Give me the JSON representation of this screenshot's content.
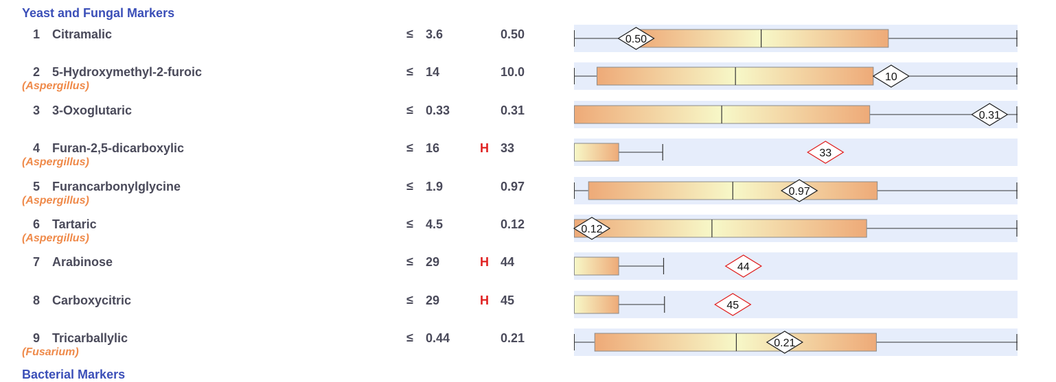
{
  "section": {
    "title": "Yeast and Fungal Markers",
    "next_title": "Bacterial Markers"
  },
  "colors": {
    "band_bg": "#e6edfb",
    "box_edge": "#eeaa78",
    "box_center": "#f7f8c8",
    "flag_high": "#e02020",
    "organism": "#ef8a4a",
    "title": "#3b4fb8"
  },
  "markers": [
    {
      "num": "1",
      "name": "Citramalic",
      "organism": "",
      "ref_sym": "≤",
      "ref_value": "3.6",
      "flag": "",
      "value": "0.50",
      "marker_label": "0.50",
      "plot": {
        "whisker_low": 0,
        "box_low": 0.14,
        "median": 0.422,
        "box_high": 0.708,
        "whisker_high": 1.0,
        "point": 0.14
      }
    },
    {
      "num": "2",
      "name": "5-Hydroxymethyl-2-furoic",
      "organism": "(Aspergillus)",
      "ref_sym": "≤",
      "ref_value": "14",
      "flag": "",
      "value": "10.0",
      "marker_label": "10",
      "plot": {
        "whisker_low": 0,
        "box_low": 0.051,
        "median": 0.364,
        "box_high": 0.674,
        "whisker_high": 1.0,
        "point": 0.715
      }
    },
    {
      "num": "3",
      "name": "3-Oxoglutaric",
      "organism": "",
      "ref_sym": "≤",
      "ref_value": "0.33",
      "flag": "",
      "value": "0.31",
      "marker_label": "0.31",
      "plot": {
        "whisker_low": 0,
        "box_low": 0,
        "median": 0.333,
        "box_high": 0.666,
        "whisker_high": 1.0,
        "point": 0.937
      }
    },
    {
      "num": "4",
      "name": "Furan-2,5-dicarboxylic",
      "organism": "(Aspergillus)",
      "ref_sym": "≤",
      "ref_value": "16",
      "flag": "H",
      "value": "33",
      "marker_label": "33",
      "plot": {
        "whisker_low": 0,
        "box_low": 0,
        "median": null,
        "box_high": 0.1,
        "whisker_high": 0.2,
        "point": 0.567
      }
    },
    {
      "num": "5",
      "name": "Furancarbonylglycine",
      "organism": "(Aspergillus)",
      "ref_sym": "≤",
      "ref_value": "1.9",
      "flag": "",
      "value": "0.97",
      "marker_label": "0.97",
      "plot": {
        "whisker_low": 0,
        "box_low": 0.032,
        "median": 0.358,
        "box_high": 0.683,
        "whisker_high": 1.0,
        "point": 0.508
      }
    },
    {
      "num": "6",
      "name": "Tartaric",
      "organism": "(Aspergillus)",
      "ref_sym": "≤",
      "ref_value": "4.5",
      "flag": "",
      "value": "0.12",
      "marker_label": "0.12",
      "plot": {
        "whisker_low": 0,
        "box_low": 0,
        "median": 0.311,
        "box_high": 0.659,
        "whisker_high": 1.0,
        "point": 0.026
      }
    },
    {
      "num": "7",
      "name": "Arabinose",
      "organism": "",
      "ref_sym": "≤",
      "ref_value": "29",
      "flag": "H",
      "value": "44",
      "marker_label": "44",
      "plot": {
        "whisker_low": 0,
        "box_low": 0,
        "median": null,
        "box_high": 0.1,
        "whisker_high": 0.202,
        "point": 0.382
      }
    },
    {
      "num": "8",
      "name": "Carboxycitric",
      "organism": "",
      "ref_sym": "≤",
      "ref_value": "29",
      "flag": "H",
      "value": "45",
      "marker_label": "45",
      "plot": {
        "whisker_low": 0,
        "box_low": 0,
        "median": null,
        "box_high": 0.1,
        "whisker_high": 0.204,
        "point": 0.358
      }
    },
    {
      "num": "9",
      "name": "Tricarballylic",
      "organism": "(Fusarium)",
      "ref_sym": "≤",
      "ref_value": "0.44",
      "flag": "",
      "value": "0.21",
      "marker_label": "0.21",
      "plot": {
        "whisker_low": 0,
        "box_low": 0.046,
        "median": 0.366,
        "box_high": 0.681,
        "whisker_high": 1.0,
        "point": 0.475
      }
    }
  ]
}
